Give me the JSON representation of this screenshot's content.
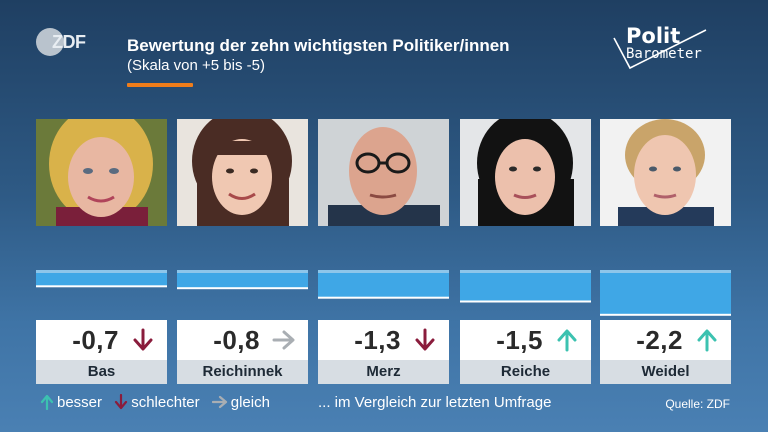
{
  "header": {
    "brand_logo": "ZDF",
    "title": "Bewertung der zehn wichtigsten Politiker/innen",
    "subtitle": "(Skala von +5 bis -5)",
    "accent_color": "#f07d1a",
    "show_logo_line1": "Polit",
    "show_logo_line2": "Barometer"
  },
  "colors": {
    "bar": "#3fa7e6",
    "bar_baseline": "#8ec6ea",
    "arrow_up": "#3cc2b0",
    "arrow_down": "#8a1c3c",
    "arrow_same": "#a9aeb3"
  },
  "chart_data": {
    "type": "bar",
    "categories": [
      "Bas",
      "Reichinnek",
      "Merz",
      "Reiche",
      "Weidel"
    ],
    "values": [
      -0.7,
      -0.8,
      -1.3,
      -1.5,
      -2.2
    ],
    "value_labels": [
      "-0,7",
      "-0,8",
      "-1,3",
      "-1,5",
      "-2,2"
    ],
    "trend": [
      "down",
      "same",
      "down",
      "up",
      "up"
    ],
    "ylim": [
      -5,
      5
    ],
    "orientation": "downward from zero line"
  },
  "legend": {
    "better": "besser",
    "worse": "schlechter",
    "same": "gleich",
    "note": "... im Vergleich zur letzten Umfrage"
  },
  "source": "Quelle: ZDF"
}
